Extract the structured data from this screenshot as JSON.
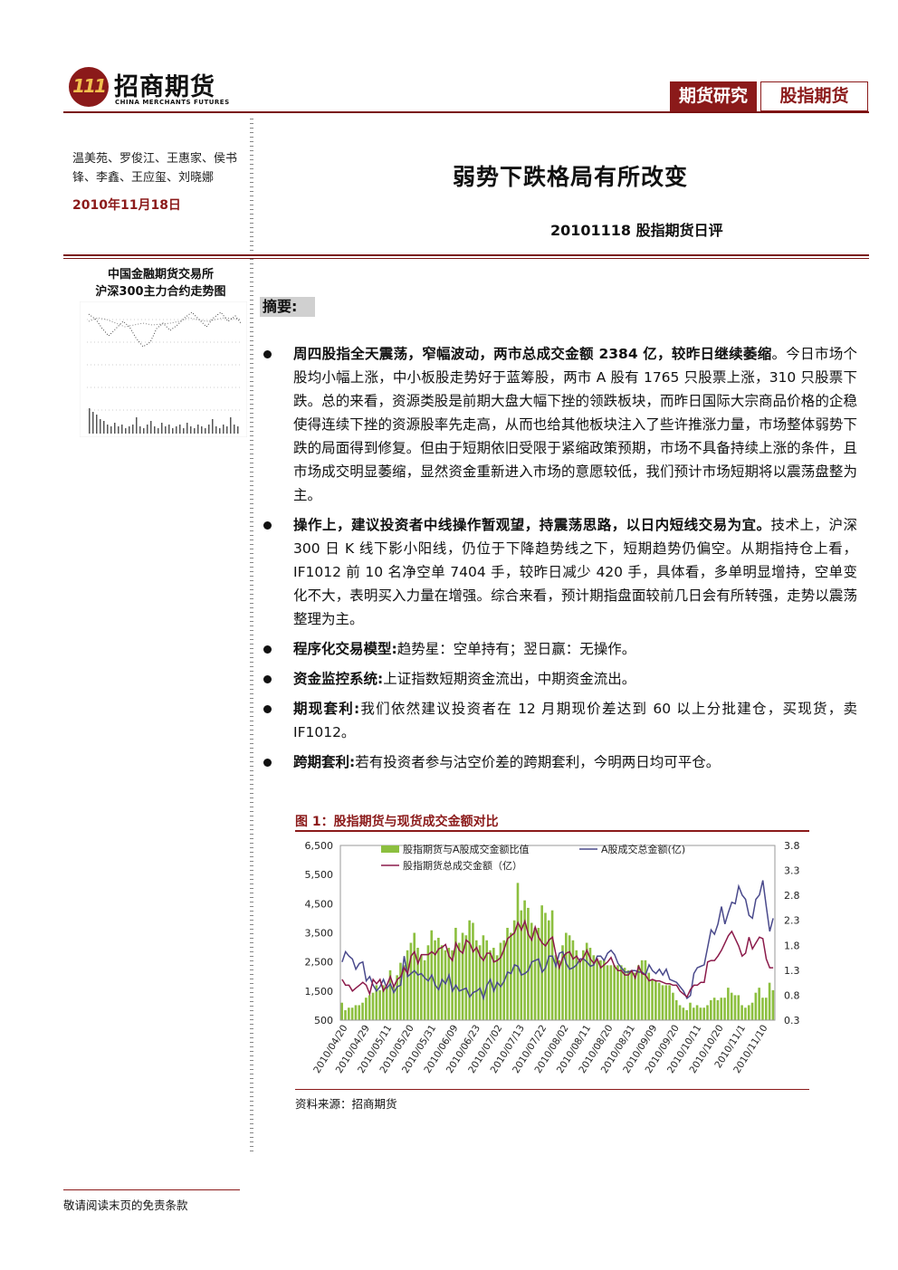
{
  "header": {
    "logo_mark": "111",
    "logo_cn": "招商期货",
    "logo_en": "CHINA MERCHANTS FUTURES",
    "tag_research": "期货研究",
    "tag_category": "股指期货"
  },
  "sidebar": {
    "authors": "温美苑、罗俊江、王惠家、侯书锋、李鑫、王应玺、刘晓娜",
    "date": "2010年11月18日",
    "chart_title_1": "中国金融期货交易所",
    "chart_title_2": "沪深300主力合约走势图"
  },
  "main": {
    "title": "弱势下跌格局有所改变",
    "subtitle": "20101118 股指期货日评",
    "summary_heading": "摘要:",
    "bullets": [
      {
        "bold": "周四股指全天震荡，窄幅波动，两市总成交金额 2384 亿，较昨日继续萎缩",
        "text": "。今日市场个股均小幅上涨，中小板股走势好于蓝筹股，两市 A 股有 1765 只股票上涨，310 只股票下跌。总的来看，资源类股是前期大盘大幅下挫的领跌板块，而昨日国际大宗商品价格的企稳使得连续下挫的资源股率先走高，从而也给其他板块注入了些许推涨力量，市场整体弱势下跌的局面得到修复。但由于短期依旧受限于紧缩政策预期，市场不具备持续上涨的条件，且市场成交明显萎缩，显然资金重新进入市场的意愿较低，我们预计市场短期将以震荡盘整为主。"
      },
      {
        "bold": "操作上，建议投资者中线操作暂观望，持震荡思路，以日内短线交易为宜。",
        "text": "技术上，沪深 300 日 K 线下影小阳线，仍位于下降趋势线之下，短期趋势仍偏空。从期指持仓上看，IF1012 前 10 名净空单 7404 手，较昨日减少 420 手，具体看，多单明显增持，空单变化不大，表明买入力量在增强。综合来看，预计期指盘面较前几日会有所转强，走势以震荡整理为主。"
      },
      {
        "bold": "程序化交易模型:",
        "text": "趋势星：空单持有；翌日赢：无操作。"
      },
      {
        "bold": "资金监控系统:",
        "text": "上证指数短期资金流出，中期资金流出。"
      },
      {
        "bold": "期现套利:",
        "text": "我们依然建议投资者在 12 月期现价差达到 60 以上分批建仓，买现货，卖 IF1012。"
      },
      {
        "bold": "跨期套利:",
        "text": "若有投资者参与沽空价差的跨期套利，今明两日均可平仓。"
      }
    ],
    "figure_title": "图 1：股指期货与现货成交金额对比",
    "source": "资料来源：招商期货"
  },
  "footer": {
    "disclaimer": "敬请阅读末页的免责条款"
  },
  "colors": {
    "brand": "#8b1a1a",
    "bar": "#8cbf3f",
    "line_a": "#4a4a8c",
    "line_f": "#8b1a4a"
  },
  "chart_data": {
    "type": "bar",
    "title": "图 1：股指期货与现货成交金额对比",
    "legend_placement": "top",
    "y_left_ticks": [
      "6,500",
      "5,500",
      "4,500",
      "3,500",
      "2,500",
      "1,500",
      "500"
    ],
    "y_left_range": [
      500,
      6500
    ],
    "y_right_ticks": [
      "3.8",
      "3.3",
      "2.8",
      "2.3",
      "1.8",
      "1.3",
      "0.8",
      "0.3"
    ],
    "y_right_range": [
      0.3,
      3.8
    ],
    "x_ticks": [
      "2010/04/20",
      "2010/04/29",
      "2010/05/11",
      "2010/05/20",
      "2010/05/31",
      "2010/06/09",
      "2010/06/23",
      "2010/07/02",
      "2010/07/13",
      "2010/07/22",
      "2010/08/02",
      "2010/08/11",
      "2010/08/20",
      "2010/08/31",
      "2010/09/09",
      "2010/09/20",
      "2010/10/11",
      "2010/10/20",
      "2010/11/1",
      "2010/11/10"
    ],
    "series": [
      {
        "name": "股指期货与A股成交金额比值",
        "axis": "right",
        "kind": "bar",
        "values": [
          0.65,
          0.5,
          0.55,
          0.55,
          0.6,
          0.6,
          0.65,
          0.75,
          0.8,
          0.85,
          1.0,
          0.9,
          1.0,
          0.95,
          1.3,
          1.0,
          1.2,
          1.45,
          1.4,
          1.7,
          1.85,
          2.05,
          1.75,
          1.6,
          1.5,
          1.8,
          2.1,
          1.9,
          1.95,
          1.8,
          1.7,
          1.75,
          1.7,
          2.15,
          1.85,
          2.05,
          2.0,
          2.3,
          2.25,
          1.9,
          1.8,
          2.0,
          1.9,
          1.7,
          1.75,
          1.6,
          1.85,
          1.9,
          2.15,
          2.05,
          2.3,
          3.05,
          2.5,
          2.7,
          2.55,
          2.25,
          2.15,
          2.15,
          2.6,
          2.45,
          2.3,
          2.5,
          1.6,
          1.5,
          1.8,
          2.05,
          2.0,
          1.9,
          1.7,
          1.5,
          1.7,
          1.85,
          1.75,
          1.6,
          1.5,
          1.5,
          1.5,
          1.4,
          1.4,
          1.4,
          1.4,
          1.4,
          1.35,
          1.3,
          1.3,
          1.25,
          1.4,
          1.5,
          1.5,
          1.25,
          1.1,
          1.1,
          1.05,
          1.0,
          1.0,
          1.0,
          0.85,
          0.7,
          0.6,
          0.55,
          0.5,
          0.65,
          0.55,
          0.6,
          0.55,
          0.55,
          0.6,
          0.7,
          0.75,
          0.7,
          0.75,
          0.75,
          0.95,
          0.85,
          0.8,
          0.8,
          0.6,
          0.55,
          0.6,
          0.65,
          0.85,
          0.95,
          0.75,
          0.75,
          1.05,
          0.9
        ]
      },
      {
        "name": "A股成交总金额(亿)",
        "axis": "left",
        "kind": "line",
        "values": [
          2500,
          2850,
          2700,
          2600,
          2250,
          2450,
          2500,
          1850,
          2000,
          1700,
          1500,
          1650,
          1900,
          1600,
          1750,
          1450,
          1650,
          1700,
          2700,
          2000,
          2100,
          2200,
          2050,
          2100,
          1950,
          1850,
          2050,
          1700,
          1550,
          1900,
          1750,
          2050,
          1500,
          1700,
          1500,
          1550,
          1600,
          1300,
          1450,
          1500,
          1600,
          1250,
          1700,
          1900,
          1500,
          1800,
          1650,
          1850,
          2150,
          2100,
          2400,
          2350,
          2050,
          2100,
          2200,
          2500,
          2550,
          2600,
          2150,
          2300,
          2700,
          2700,
          2350,
          2800,
          2850,
          2450,
          2250,
          2300,
          2400,
          2600,
          2600,
          2500,
          2350,
          2400,
          2700,
          2700,
          2550,
          2800,
          2900,
          2750,
          2450,
          2300,
          2150,
          2150,
          2200,
          2200,
          2150,
          2150,
          2050,
          2400,
          2200,
          2100,
          2250,
          2050,
          2250,
          1900,
          1850,
          1800,
          1650,
          1500,
          1250,
          1350,
          2100,
          2300,
          2350,
          2400,
          3000,
          3600,
          3450,
          3800,
          4400,
          3800,
          4200,
          4550,
          4500,
          5100,
          4800,
          4650,
          4100,
          4000,
          4650,
          4800,
          5300,
          4400,
          3550,
          4000
        ]
      },
      {
        "name": "股指期货总成交金额（亿）",
        "axis": "left",
        "kind": "line",
        "values": [
          1900,
          1700,
          1700,
          1500,
          1600,
          1700,
          1800,
          1700,
          1400,
          1900,
          1750,
          1900,
          1500,
          1700,
          2000,
          1650,
          1900,
          2000,
          2300,
          2100,
          2700,
          2850,
          2450,
          2750,
          2750,
          2750,
          2850,
          2750,
          2950,
          3000,
          3100,
          2700,
          2550,
          3150,
          2900,
          2800,
          3250,
          3150,
          2850,
          3000,
          2700,
          2550,
          2800,
          2800,
          2500,
          2550,
          2650,
          2950,
          3300,
          3400,
          3500,
          3850,
          3600,
          3900,
          3450,
          3250,
          3700,
          3350,
          3150,
          3050,
          3250,
          3350,
          2750,
          2300,
          2650,
          2800,
          2850,
          2600,
          2700,
          2500,
          2650,
          2900,
          2600,
          2450,
          2600,
          2300,
          2400,
          2500,
          2650,
          2350,
          2200,
          2200,
          2050,
          2050,
          2200,
          1950,
          2350,
          2100,
          2050,
          1850,
          1900,
          1850,
          1850,
          1800,
          1750,
          1750,
          1700,
          1700,
          1500,
          1400,
          1300,
          1550,
          1700,
          1700,
          1800,
          1800,
          2500,
          2550,
          2550,
          2700,
          2900,
          3150,
          3400,
          3550,
          3300,
          3050,
          2700,
          2800,
          3350,
          2950,
          3150,
          3350,
          3300,
          2600,
          2300,
          2300
        ]
      }
    ]
  }
}
